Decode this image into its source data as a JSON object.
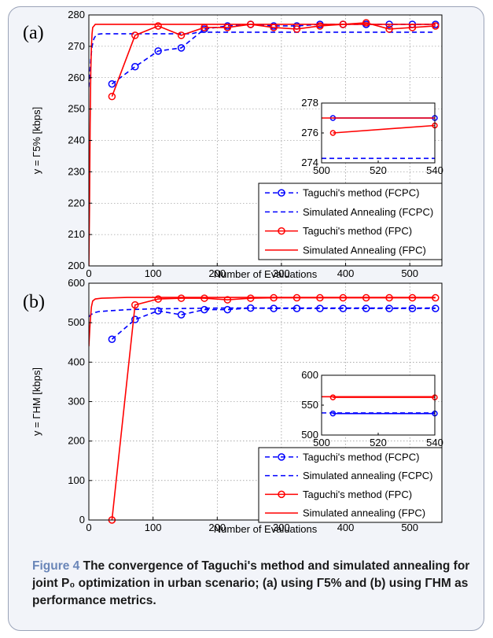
{
  "caption": {
    "figure_label": "Figure 4",
    "text": "The convergence of Taguchi's method and simulated annealing for joint P₀ optimization in urban scenario; (a) using Γ5% and (b) using ΓHM as performance metrics."
  },
  "chart_data": [
    {
      "panel": "(a)",
      "type": "line",
      "xlabel": "Number of Evaluations",
      "ylabel": "y = Γ5% [kbps]",
      "xlim": [
        0,
        550
      ],
      "ylim": [
        200,
        280
      ],
      "xticks": [
        0,
        100,
        200,
        300,
        400,
        500
      ],
      "yticks": [
        200,
        210,
        220,
        230,
        240,
        250,
        260,
        270,
        280
      ],
      "grid": true,
      "legend_position": "bottom-right",
      "series": [
        {
          "name": "Taguchi's method (FCPC)",
          "color": "#0000ff",
          "style": "dashed-marker",
          "x": [
            36,
            72,
            108,
            144,
            180,
            216,
            252,
            288,
            324,
            360,
            396,
            432,
            468,
            504,
            540
          ],
          "y": [
            258,
            263.5,
            268.5,
            269.5,
            275.5,
            276.5,
            277,
            276.5,
            276.5,
            277,
            277,
            277,
            277,
            277,
            277
          ]
        },
        {
          "name": "Simulated Annealing (FCPC)",
          "color": "#0000ff",
          "style": "dashed",
          "x": [
            0,
            1,
            3,
            5,
            8,
            12,
            20,
            40,
            80,
            120,
            160,
            170,
            180,
            220,
            300,
            400,
            500,
            540
          ],
          "y": [
            257,
            260,
            266,
            270,
            272.5,
            273.8,
            274,
            274,
            274,
            274,
            274,
            274.5,
            274.5,
            274.5,
            274.5,
            274.5,
            274.5,
            274.5
          ]
        },
        {
          "name": "Taguchi's method (FPC)",
          "color": "#ff0000",
          "style": "solid-marker",
          "x": [
            36,
            72,
            108,
            144,
            180,
            216,
            252,
            288,
            324,
            360,
            396,
            432,
            468,
            504,
            540
          ],
          "y": [
            254,
            273.5,
            276.5,
            273.5,
            276,
            276,
            277,
            276,
            275.5,
            276.5,
            277,
            277.5,
            275.5,
            276,
            276.5
          ]
        },
        {
          "name": "Simulated Annealing (FPC)",
          "color": "#ff0000",
          "style": "solid",
          "x": [
            0,
            1,
            2,
            3,
            4,
            5,
            6,
            8,
            10,
            14,
            60,
            120,
            200,
            300,
            400,
            500,
            540
          ],
          "y": [
            200,
            218,
            245,
            262,
            270,
            274,
            276,
            276.5,
            277,
            277,
            277,
            277,
            277,
            277,
            277,
            277,
            277
          ]
        }
      ],
      "inset": {
        "xlim": [
          500,
          540
        ],
        "ylim": [
          274,
          278
        ],
        "xticks": [
          500,
          520,
          540
        ],
        "yticks": [
          274,
          276,
          278
        ],
        "series": [
          {
            "color": "#0000ff",
            "style": "solid-marker",
            "x": [
              504,
              540
            ],
            "y": [
              277,
              277
            ]
          },
          {
            "color": "#0000ff",
            "style": "dashed",
            "x": [
              500,
              540
            ],
            "y": [
              274.3,
              274.3
            ]
          },
          {
            "color": "#ff0000",
            "style": "solid-marker",
            "x": [
              504,
              540
            ],
            "y": [
              276,
              276.5
            ]
          },
          {
            "color": "#ff0000",
            "style": "solid",
            "x": [
              500,
              540
            ],
            "y": [
              277,
              277
            ]
          }
        ]
      }
    },
    {
      "panel": "(b)",
      "type": "line",
      "xlabel": "Number of Evaluations",
      "ylabel": "y = ΓHM [kbps]",
      "xlim": [
        0,
        550
      ],
      "ylim": [
        0,
        600
      ],
      "xticks": [
        0,
        100,
        200,
        300,
        400,
        500
      ],
      "yticks": [
        0,
        100,
        200,
        300,
        400,
        500,
        600
      ],
      "grid": true,
      "legend_position": "bottom-right",
      "series": [
        {
          "name": "Taguchi's method (FCPC)",
          "color": "#0000ff",
          "style": "dashed-marker",
          "x": [
            36,
            72,
            108,
            144,
            180,
            216,
            252,
            288,
            324,
            360,
            396,
            432,
            468,
            504,
            540
          ],
          "y": [
            458,
            508,
            530,
            520,
            533,
            533,
            537,
            536,
            536,
            536,
            536,
            536,
            536,
            536,
            536
          ]
        },
        {
          "name": "Simulated annealing (FCPC)",
          "color": "#0000ff",
          "style": "dashed",
          "x": [
            0,
            3,
            8,
            15,
            30,
            60,
            100,
            150,
            200,
            300,
            400,
            500,
            540
          ],
          "y": [
            515,
            520,
            525,
            528,
            530,
            533,
            535,
            536,
            537,
            537,
            537,
            537,
            537
          ]
        },
        {
          "name": "Taguchi's method (FPC)",
          "color": "#ff0000",
          "style": "solid-marker",
          "x": [
            36,
            72,
            108,
            144,
            180,
            216,
            252,
            288,
            324,
            360,
            396,
            432,
            468,
            504,
            540
          ],
          "y": [
            0,
            545,
            560,
            562,
            562,
            558,
            562,
            563,
            563,
            563,
            563,
            563,
            563,
            563,
            563
          ]
        },
        {
          "name": "Simulated annealing (FPC)",
          "color": "#ff0000",
          "style": "solid",
          "x": [
            0,
            2,
            4,
            6,
            10,
            20,
            60,
            120,
            200,
            300,
            400,
            500,
            540
          ],
          "y": [
            440,
            500,
            540,
            555,
            560,
            562,
            564,
            564,
            564,
            564,
            564,
            564,
            564
          ]
        }
      ],
      "inset": {
        "xlim": [
          500,
          540
        ],
        "ylim": [
          500,
          600
        ],
        "xticks": [
          500,
          520,
          540
        ],
        "yticks": [
          500,
          550,
          600
        ],
        "series": [
          {
            "color": "#ff0000",
            "style": "solid-marker",
            "x": [
              504,
              540
            ],
            "y": [
              563,
              563
            ]
          },
          {
            "color": "#ff0000",
            "style": "solid",
            "x": [
              500,
              540
            ],
            "y": [
              564,
              564
            ]
          },
          {
            "color": "#0000ff",
            "style": "solid-marker",
            "x": [
              504,
              540
            ],
            "y": [
              536,
              536
            ]
          },
          {
            "color": "#0000ff",
            "style": "dashed",
            "x": [
              500,
              540
            ],
            "y": [
              537,
              537
            ]
          }
        ]
      }
    }
  ]
}
